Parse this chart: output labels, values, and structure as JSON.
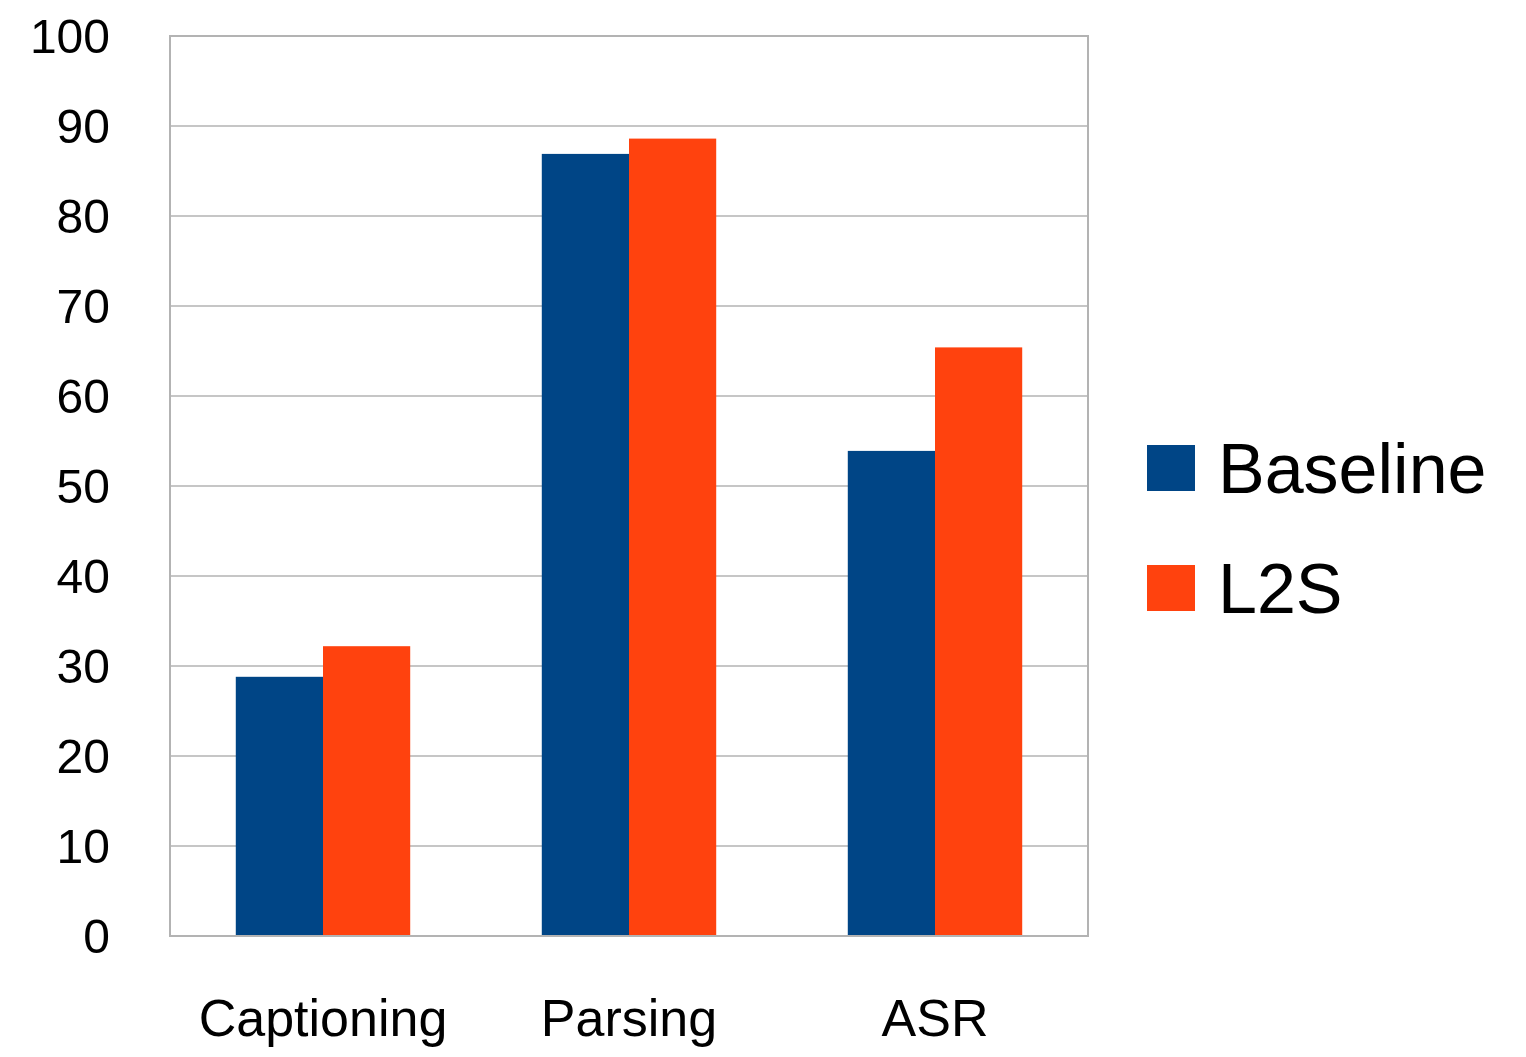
{
  "chart_data": {
    "type": "bar",
    "categories": [
      "Captioning",
      "Parsing",
      "ASR"
    ],
    "series": [
      {
        "name": "Baseline",
        "color": "#004586",
        "values": [
          28.8,
          86.9,
          53.9
        ]
      },
      {
        "name": "L2S",
        "color": "#ff420e",
        "values": [
          32.2,
          88.6,
          65.4
        ]
      }
    ],
    "ylim": [
      0,
      100
    ],
    "yticks": [
      0,
      10,
      20,
      30,
      40,
      50,
      60,
      70,
      80,
      90,
      100
    ],
    "grid": "y",
    "legend": "right"
  }
}
